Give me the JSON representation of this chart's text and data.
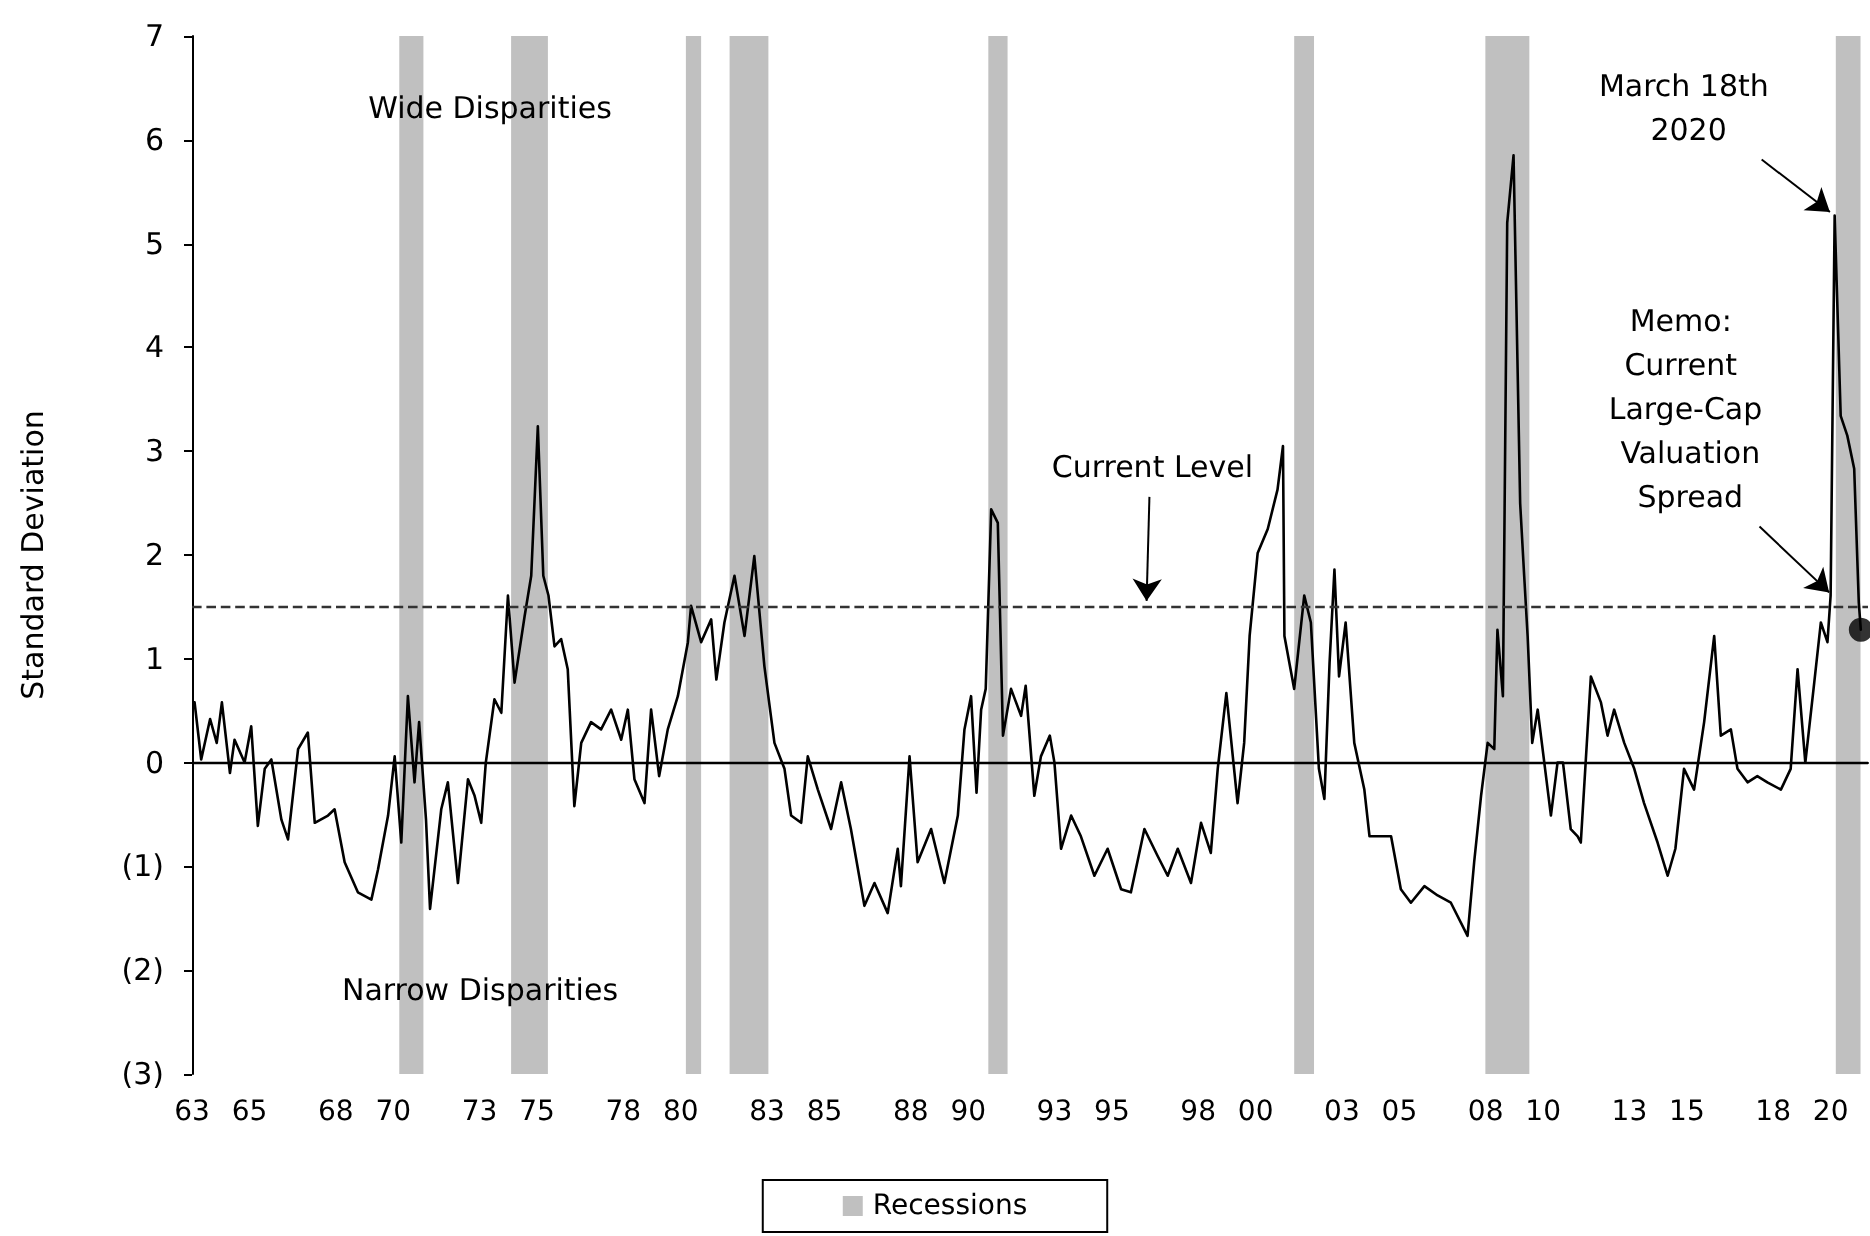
{
  "chart_data": {
    "type": "line",
    "ylabel": "Standard Deviation",
    "marker": "none",
    "line_style": "solid",
    "grid": false,
    "legend": "bottom",
    "xlim": [
      1963,
      2021.3
    ],
    "xticks": [
      {
        "value": 1963,
        "label": "63"
      },
      {
        "value": 1965,
        "label": "65"
      },
      {
        "value": 1968,
        "label": "68"
      },
      {
        "value": 1970,
        "label": "70"
      },
      {
        "value": 1973,
        "label": "73"
      },
      {
        "value": 1975,
        "label": "75"
      },
      {
        "value": 1978,
        "label": "78"
      },
      {
        "value": 1980,
        "label": "80"
      },
      {
        "value": 1983,
        "label": "83"
      },
      {
        "value": 1985,
        "label": "85"
      },
      {
        "value": 1988,
        "label": "88"
      },
      {
        "value": 1990,
        "label": "90"
      },
      {
        "value": 1993,
        "label": "93"
      },
      {
        "value": 1995,
        "label": "95"
      },
      {
        "value": 1998,
        "label": "98"
      },
      {
        "value": 2000,
        "label": "00"
      },
      {
        "value": 2003,
        "label": "03"
      },
      {
        "value": 2005,
        "label": "05"
      },
      {
        "value": 2008,
        "label": "08"
      },
      {
        "value": 2010,
        "label": "10"
      },
      {
        "value": 2013,
        "label": "13"
      },
      {
        "value": 2015,
        "label": "15"
      },
      {
        "value": 2018,
        "label": "18"
      },
      {
        "value": 2020,
        "label": "20"
      }
    ],
    "ylim": [
      -3,
      7
    ],
    "yticks": [
      {
        "value": -3,
        "label": "(3)"
      },
      {
        "value": -2,
        "label": "(2)"
      },
      {
        "value": -1,
        "label": "(1)"
      },
      0,
      1,
      2,
      3,
      4,
      5,
      6,
      7
    ],
    "x": [
      1963.09,
      1963.32,
      1963.63,
      1963.86,
      1964.04,
      1964.32,
      1964.48,
      1964.83,
      1965.06,
      1965.29,
      1965.53,
      1965.76,
      1966.11,
      1966.34,
      1966.69,
      1967.03,
      1967.27,
      1967.73,
      1967.96,
      1968.31,
      1968.77,
      1969.24,
      1969.47,
      1969.82,
      1970.05,
      1970.28,
      1970.51,
      1970.74,
      1970.9,
      1971.14,
      1971.28,
      1971.67,
      1971.9,
      1972.25,
      1972.6,
      1972.83,
      1973.06,
      1973.22,
      1973.52,
      1973.76,
      1973.99,
      1974.22,
      1974.57,
      1974.8,
      1975.03,
      1975.22,
      1975.4,
      1975.61,
      1975.84,
      1976.07,
      1976.3,
      1976.54,
      1976.88,
      1977.23,
      1977.58,
      1977.93,
      1978.16,
      1978.39,
      1978.74,
      1978.97,
      1979.25,
      1979.55,
      1979.9,
      1980.25,
      1980.36,
      1980.71,
      1981.06,
      1981.24,
      1981.52,
      1981.87,
      1982.22,
      1982.56,
      1982.91,
      1983.26,
      1983.61,
      1983.84,
      1984.19,
      1984.42,
      1984.77,
      1985.23,
      1985.58,
      1985.92,
      1986.39,
      1986.74,
      1987.2,
      1987.55,
      1987.66,
      1987.96,
      1988.24,
      1988.71,
      1989.17,
      1989.64,
      1989.87,
      1990.1,
      1990.29,
      1990.45,
      1990.61,
      1990.8,
      1991.03,
      1991.21,
      1991.49,
      1991.84,
      1992.0,
      1992.3,
      1992.53,
      1992.84,
      1993.0,
      1993.23,
      1993.58,
      1993.92,
      1994.39,
      1994.85,
      1995.32,
      1995.66,
      1996.13,
      1996.59,
      1996.94,
      1997.29,
      1997.75,
      1998.1,
      1998.44,
      1998.68,
      1998.98,
      1999.37,
      1999.6,
      1999.79,
      2000.07,
      2000.42,
      2000.76,
      2000.95,
      2001.0,
      2001.34,
      2001.69,
      2001.92,
      2002.2,
      2002.39,
      2002.57,
      2002.74,
      2002.9,
      2003.13,
      2003.43,
      2003.78,
      2003.96,
      2004.36,
      2004.71,
      2005.05,
      2005.4,
      2005.87,
      2006.33,
      2006.79,
      2007.37,
      2007.6,
      2007.84,
      2008.07,
      2008.3,
      2008.41,
      2008.6,
      2008.75,
      2008.97,
      2009.2,
      2009.34,
      2009.46,
      2009.62,
      2009.81,
      2010.04,
      2010.27,
      2010.5,
      2010.69,
      2010.96,
      2011.2,
      2011.31,
      2011.66,
      2012.01,
      2012.24,
      2012.47,
      2012.82,
      2013.17,
      2013.51,
      2013.98,
      2014.33,
      2014.6,
      2014.9,
      2015.25,
      2015.6,
      2015.95,
      2016.18,
      2016.53,
      2016.76,
      2017.11,
      2017.45,
      2017.8,
      2018.27,
      2018.61,
      2018.85,
      2019.12,
      2019.43,
      2019.66,
      2019.89,
      2020.0,
      2020.14,
      2020.35,
      2020.58,
      2020.82,
      2020.98,
      2021.05
    ],
    "series": [
      {
        "color": "#000000",
        "values": [
          0.58,
          0.03,
          0.42,
          0.19,
          0.58,
          -0.1,
          0.22,
          0.0,
          0.35,
          -0.61,
          -0.06,
          0.03,
          -0.55,
          -0.74,
          0.13,
          0.29,
          -0.58,
          -0.51,
          -0.45,
          -0.96,
          -1.25,
          -1.32,
          -1.03,
          -0.51,
          0.06,
          -0.77,
          0.64,
          -0.19,
          0.39,
          -0.55,
          -1.41,
          -0.45,
          -0.19,
          -1.16,
          -0.16,
          -0.32,
          -0.58,
          0.0,
          0.61,
          0.48,
          1.61,
          0.77,
          1.41,
          1.8,
          3.24,
          1.8,
          1.61,
          1.12,
          1.19,
          0.9,
          -0.42,
          0.19,
          0.39,
          0.32,
          0.51,
          0.22,
          0.51,
          -0.16,
          -0.39,
          0.51,
          -0.13,
          0.32,
          0.64,
          1.16,
          1.51,
          1.16,
          1.38,
          0.8,
          1.35,
          1.8,
          1.22,
          1.99,
          0.93,
          0.19,
          -0.06,
          -0.51,
          -0.58,
          0.06,
          -0.26,
          -0.64,
          -0.19,
          -0.64,
          -1.38,
          -1.16,
          -1.45,
          -0.83,
          -1.19,
          0.06,
          -0.96,
          -0.64,
          -1.16,
          -0.51,
          0.32,
          0.64,
          -0.29,
          0.51,
          0.71,
          2.44,
          2.31,
          0.26,
          0.71,
          0.45,
          0.74,
          -0.32,
          0.06,
          0.26,
          0.0,
          -0.83,
          -0.51,
          -0.71,
          -1.09,
          -0.83,
          -1.22,
          -1.25,
          -0.64,
          -0.9,
          -1.09,
          -0.83,
          -1.16,
          -0.58,
          -0.87,
          -0.06,
          0.67,
          -0.39,
          0.19,
          1.22,
          2.02,
          2.25,
          2.63,
          3.05,
          1.22,
          0.71,
          1.61,
          1.35,
          -0.06,
          -0.35,
          0.96,
          1.86,
          0.83,
          1.35,
          0.19,
          -0.26,
          -0.71,
          -0.71,
          -0.71,
          -1.22,
          -1.35,
          -1.19,
          -1.28,
          -1.35,
          -1.67,
          -0.96,
          -0.32,
          0.19,
          0.13,
          1.28,
          0.64,
          5.2,
          5.85,
          2.5,
          1.8,
          1.22,
          0.19,
          0.51,
          0.0,
          -0.51,
          0.0,
          0.0,
          -0.64,
          -0.71,
          -0.77,
          0.83,
          0.58,
          0.26,
          0.51,
          0.19,
          -0.06,
          -0.39,
          -0.77,
          -1.09,
          -0.83,
          -0.06,
          -0.26,
          0.39,
          1.22,
          0.26,
          0.32,
          -0.06,
          -0.19,
          -0.13,
          -0.19,
          -0.26,
          -0.06,
          0.9,
          0.0,
          0.77,
          1.35,
          1.16,
          1.61,
          5.27,
          3.34,
          3.15,
          2.83,
          1.54,
          1.28
        ]
      },
      {
        "type": "scatter",
        "marker": "circle",
        "color": "#000000",
        "x": [
          2021.05
        ],
        "values": [
          1.28
        ]
      }
    ],
    "ref_lines": [
      {
        "axis": "y",
        "value": 1.5,
        "line_style": "dashed",
        "color": "#333333"
      },
      {
        "axis": "y",
        "value": 0,
        "line_style": "solid",
        "color": "#000000"
      }
    ],
    "bands": [
      {
        "axis": "x",
        "from": 1970.21,
        "to": 1971.05,
        "label": "Recessions",
        "color": "#c0c0c0"
      },
      {
        "axis": "x",
        "from": 1974.1,
        "to": 1975.38,
        "color": "#c0c0c0"
      },
      {
        "axis": "x",
        "from": 1980.18,
        "to": 1980.71,
        "color": "#c0c0c0"
      },
      {
        "axis": "x",
        "from": 1981.7,
        "to": 1983.05,
        "color": "#c0c0c0"
      },
      {
        "axis": "x",
        "from": 1990.7,
        "to": 1991.37,
        "color": "#c0c0c0"
      },
      {
        "axis": "x",
        "from": 2001.34,
        "to": 2002.03,
        "color": "#c0c0c0"
      },
      {
        "axis": "x",
        "from": 2007.99,
        "to": 2009.52,
        "color": "#c0c0c0"
      },
      {
        "axis": "x",
        "from": 2020.18,
        "to": 2021.04,
        "color": "#c0c0c0"
      }
    ],
    "annotations": [
      "Wide Disparities",
      "Narrow Disparities",
      {
        "text": "Current Level",
        "x": 1996.2,
        "y": 1.5
      },
      {
        "text": "March 18th 2020",
        "x": 2020.14,
        "y": 5.27
      },
      {
        "text": "Memo: Current Large-Cap Valuation Spread",
        "x": 2020.1,
        "y": 1.6
      }
    ]
  }
}
